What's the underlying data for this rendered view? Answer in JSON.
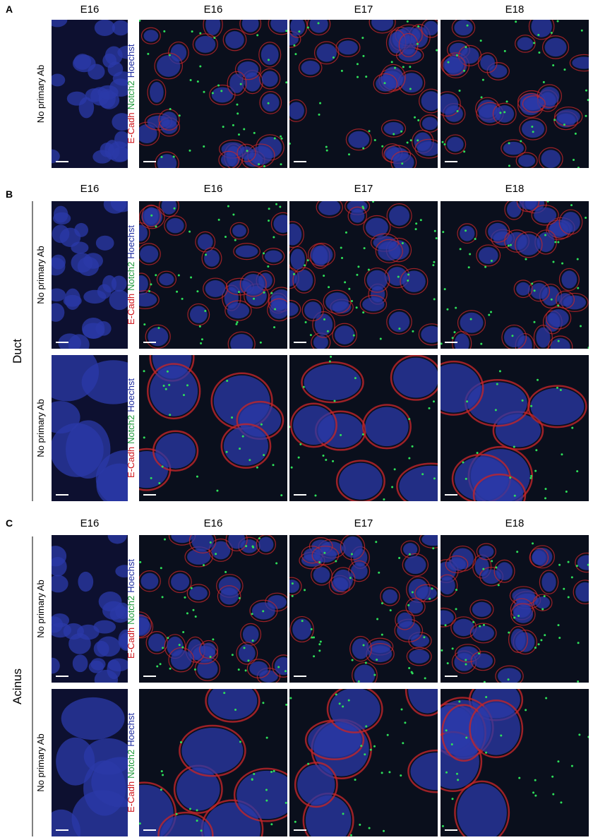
{
  "panels": [
    {
      "letter": "A",
      "columns": [
        "E16",
        "E16",
        "E17",
        "E18"
      ],
      "rows": [
        {
          "label": "No primary Ab",
          "stain": [
            "E-Cadh",
            "Notch2",
            "Hoechst"
          ]
        }
      ]
    },
    {
      "letter": "B",
      "group": "Duct",
      "columns": [
        "E16",
        "E16",
        "E17",
        "E18"
      ],
      "rows": [
        {
          "label": "No primary Ab",
          "stain": [
            "E-Cadh",
            "Notch2",
            "Hoechst"
          ]
        },
        {
          "label": "No primary Ab",
          "stain": [
            "E-Cadh",
            "Notch2",
            "Hoechst"
          ]
        }
      ]
    },
    {
      "letter": "C",
      "group": "Acinus",
      "columns": [
        "E16",
        "E16",
        "E17",
        "E18"
      ],
      "rows": [
        {
          "label": "No primary Ab",
          "stain": [
            "E-Cadh",
            "Notch2",
            "Hoechst"
          ]
        },
        {
          "label": "No primary Ab",
          "stain": [
            "E-Cadh",
            "Notch2",
            "Hoechst"
          ]
        }
      ]
    }
  ]
}
